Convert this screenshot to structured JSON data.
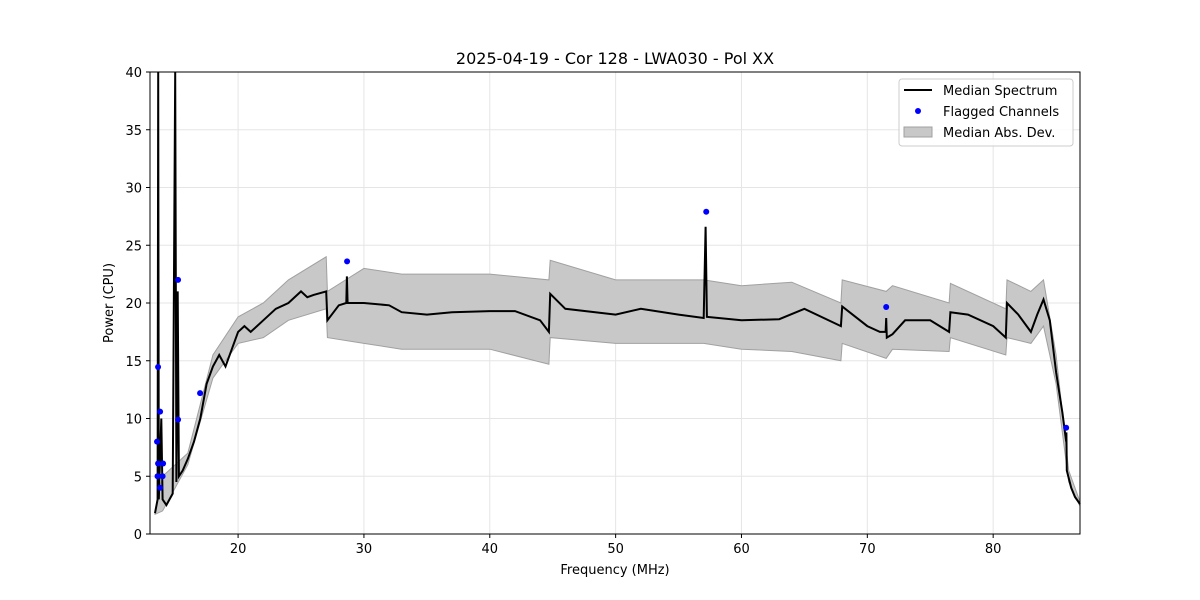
{
  "chart_data": {
    "type": "line",
    "title": "2025-04-19 - Cor 128 - LWA030 - Pol XX",
    "xlabel": "Frequency (MHz)",
    "ylabel": "Power (CPU)",
    "xlim": [
      13.0,
      86.9
    ],
    "ylim": [
      0,
      40
    ],
    "xticks": [
      20,
      30,
      40,
      50,
      60,
      70,
      80
    ],
    "yticks": [
      0,
      5,
      10,
      15,
      20,
      25,
      30,
      35,
      40
    ],
    "grid": true,
    "legend_placement": "top-right",
    "legend": [
      "Median Spectrum",
      "Flagged Channels",
      "Median Abs. Dev."
    ],
    "colors": {
      "median": "#000000",
      "flagged": "#0000ff",
      "band": "#c8c8c8",
      "band_edge": "#a0a0a0"
    },
    "median_spectrum": [
      [
        13.4,
        1.8
      ],
      [
        13.6,
        3
      ],
      [
        13.65,
        40
      ],
      [
        13.7,
        3
      ],
      [
        13.9,
        10
      ],
      [
        14.0,
        3
      ],
      [
        14.3,
        2.5
      ],
      [
        14.8,
        3.5
      ],
      [
        15.0,
        40
      ],
      [
        15.1,
        4.5
      ],
      [
        15.2,
        21
      ],
      [
        15.3,
        5
      ],
      [
        15.6,
        5.5
      ],
      [
        16,
        6.5
      ],
      [
        16.5,
        8
      ],
      [
        17,
        10
      ],
      [
        17.5,
        13
      ],
      [
        18,
        14.5
      ],
      [
        18.5,
        15.5
      ],
      [
        19,
        14.5
      ],
      [
        19.5,
        16
      ],
      [
        20,
        17.5
      ],
      [
        20.5,
        18
      ],
      [
        21,
        17.5
      ],
      [
        22,
        18.5
      ],
      [
        23,
        19.5
      ],
      [
        24,
        20
      ],
      [
        25,
        21
      ],
      [
        25.5,
        20.5
      ],
      [
        26,
        20.7
      ],
      [
        27,
        21
      ],
      [
        27.1,
        18.5
      ],
      [
        28,
        19.8
      ],
      [
        28.6,
        20
      ],
      [
        28.65,
        22.3
      ],
      [
        28.7,
        20
      ],
      [
        30,
        20
      ],
      [
        32,
        19.8
      ],
      [
        33,
        19.2
      ],
      [
        35,
        19
      ],
      [
        37,
        19.2
      ],
      [
        40,
        19.3
      ],
      [
        42,
        19.3
      ],
      [
        44,
        18.5
      ],
      [
        44.7,
        17.5
      ],
      [
        44.8,
        20.8
      ],
      [
        46,
        19.5
      ],
      [
        50,
        19
      ],
      [
        52,
        19.5
      ],
      [
        55,
        19
      ],
      [
        57,
        18.7
      ],
      [
        57.15,
        26.6
      ],
      [
        57.25,
        18.8
      ],
      [
        60,
        18.5
      ],
      [
        63,
        18.6
      ],
      [
        65,
        19.5
      ],
      [
        67.9,
        18
      ],
      [
        68,
        19.7
      ],
      [
        70,
        18
      ],
      [
        71,
        17.5
      ],
      [
        71.45,
        17.5
      ],
      [
        71.5,
        18.7
      ],
      [
        71.55,
        17
      ],
      [
        72,
        17.3
      ],
      [
        73,
        18.5
      ],
      [
        75,
        18.5
      ],
      [
        76.5,
        17.5
      ],
      [
        76.6,
        19.2
      ],
      [
        78,
        19
      ],
      [
        80,
        18
      ],
      [
        81,
        17
      ],
      [
        81.1,
        20
      ],
      [
        82,
        19
      ],
      [
        83,
        17.5
      ],
      [
        83.5,
        19
      ],
      [
        84,
        20.3
      ],
      [
        84.5,
        18.5
      ],
      [
        85,
        14
      ],
      [
        85.5,
        10.5
      ],
      [
        85.8,
        8
      ],
      [
        85.82,
        8.8
      ],
      [
        85.85,
        5.5
      ],
      [
        86.2,
        4
      ],
      [
        86.5,
        3.2
      ],
      [
        86.9,
        2.6
      ]
    ],
    "median_abs_dev_band": [
      [
        13.4,
        1.7,
        2.0
      ],
      [
        14,
        2,
        5
      ],
      [
        16,
        6,
        7
      ],
      [
        18,
        13.5,
        15.5
      ],
      [
        20,
        16.5,
        18.8
      ],
      [
        22,
        17,
        20
      ],
      [
        24,
        18.5,
        22
      ],
      [
        27,
        19.5,
        24
      ],
      [
        27.1,
        17,
        21
      ],
      [
        30,
        16.5,
        23
      ],
      [
        33,
        16,
        22.5
      ],
      [
        40,
        16,
        22.5
      ],
      [
        44.7,
        14.7,
        22
      ],
      [
        44.8,
        17,
        23.7
      ],
      [
        50,
        16.5,
        22
      ],
      [
        57,
        16.5,
        22
      ],
      [
        60,
        16,
        21.5
      ],
      [
        64,
        15.8,
        21.8
      ],
      [
        67.9,
        15,
        20
      ],
      [
        68,
        16.5,
        22
      ],
      [
        71.5,
        15.2,
        21
      ],
      [
        72,
        16,
        21.5
      ],
      [
        76.5,
        15.8,
        20
      ],
      [
        76.6,
        17,
        21.7
      ],
      [
        81,
        15.5,
        19.5
      ],
      [
        81.1,
        17,
        22
      ],
      [
        83,
        16.5,
        21
      ],
      [
        84,
        18,
        22
      ],
      [
        85,
        13,
        15.5
      ],
      [
        86,
        4.5,
        5.5
      ],
      [
        86.9,
        2.4,
        2.8
      ]
    ],
    "flagged_channels": [
      [
        13.64,
        14.46
      ],
      [
        13.8,
        10.6
      ],
      [
        13.56,
        8.0
      ],
      [
        13.64,
        6.1
      ],
      [
        14.04,
        6.1
      ],
      [
        13.6,
        5.0
      ],
      [
        14.0,
        5.0
      ],
      [
        13.8,
        4.0
      ],
      [
        15.23,
        22.0
      ],
      [
        15.23,
        9.9
      ],
      [
        16.98,
        12.2
      ],
      [
        28.66,
        23.6
      ],
      [
        57.2,
        27.9
      ],
      [
        71.5,
        19.65
      ],
      [
        85.8,
        9.2
      ]
    ]
  }
}
